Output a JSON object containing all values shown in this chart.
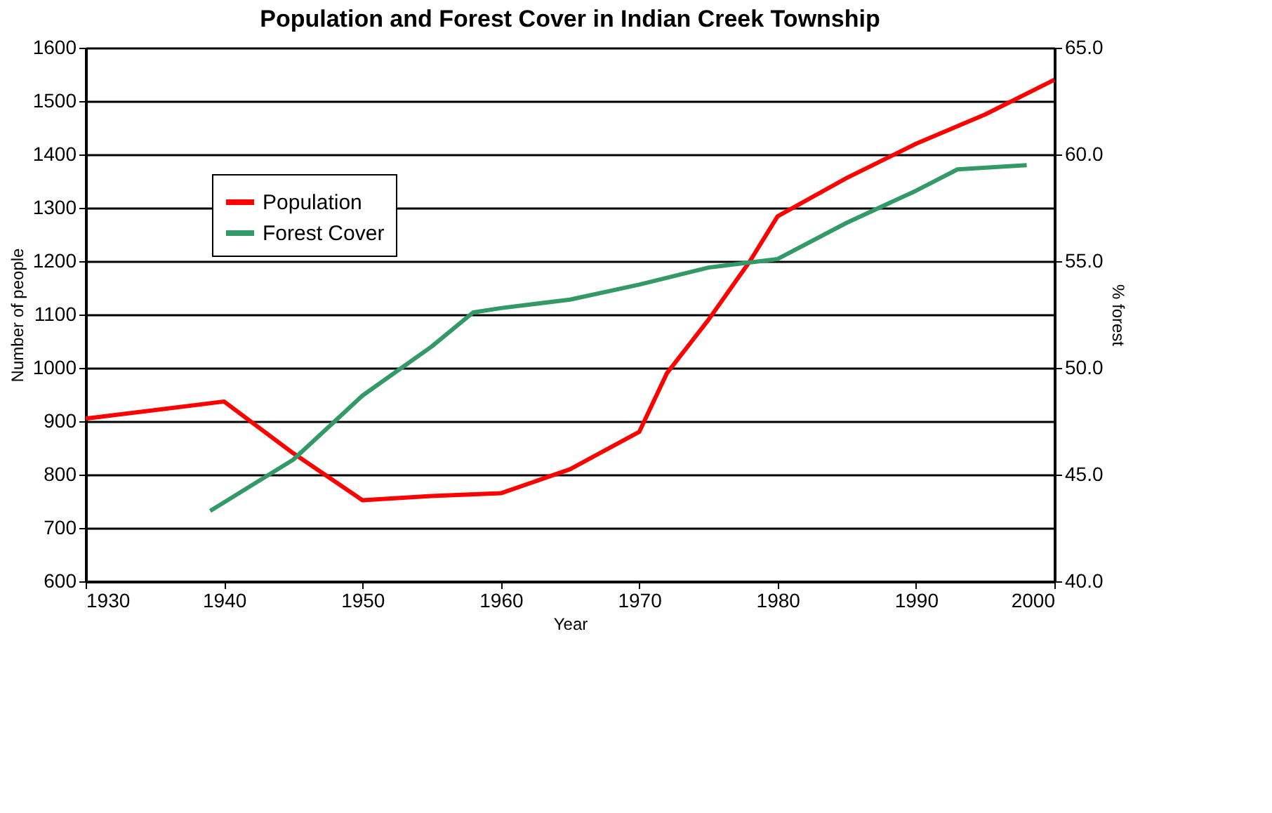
{
  "chart_data": {
    "type": "line",
    "title": "Population and Forest Cover in Indian Creek Township",
    "xlabel": "Year",
    "ylabel": "Number of people",
    "y2label": "% forest",
    "series": [
      {
        "name": "Population",
        "color": "#ff0000",
        "x": [
          1930,
          1940,
          1945,
          1950,
          1955,
          1960,
          1965,
          1970,
          1972,
          1975,
          1978,
          1980,
          1985,
          1990,
          1995,
          2000
        ],
        "values": [
          905,
          937,
          840,
          752,
          760,
          765,
          810,
          880,
          990,
          1090,
          1200,
          1284,
          1356,
          1420,
          1475,
          1540
        ]
      },
      {
        "name": "Forest Cover",
        "color": "#339966",
        "axis": "y2",
        "x": [
          1939,
          1945,
          1950,
          1955,
          1958,
          1960,
          1965,
          1970,
          1975,
          1980,
          1985,
          1990,
          1993,
          1998
        ],
        "values": [
          43.3,
          45.7,
          48.7,
          51.0,
          52.6,
          52.8,
          53.2,
          53.9,
          54.7,
          55.1,
          56.8,
          58.3,
          59.3,
          59.5
        ]
      }
    ],
    "xlim": [
      1930,
      2000
    ],
    "xticks": [
      1930,
      1940,
      1950,
      1960,
      1970,
      1980,
      1990,
      2000
    ],
    "ylim": [
      600,
      1600
    ],
    "yticks": [
      600,
      700,
      800,
      900,
      1000,
      1100,
      1200,
      1300,
      1400,
      1500,
      1600
    ],
    "y2lim": [
      40,
      65
    ],
    "y2ticks": [
      {
        "value": 40,
        "label": "40.0"
      },
      {
        "value": 45,
        "label": "45.0"
      },
      {
        "value": 50,
        "label": "50.0"
      },
      {
        "value": 55,
        "label": "55.0"
      },
      {
        "value": 60,
        "label": "60.0"
      },
      {
        "value": 65,
        "label": "65.0"
      }
    ],
    "grid": "y",
    "legend": "top left"
  }
}
